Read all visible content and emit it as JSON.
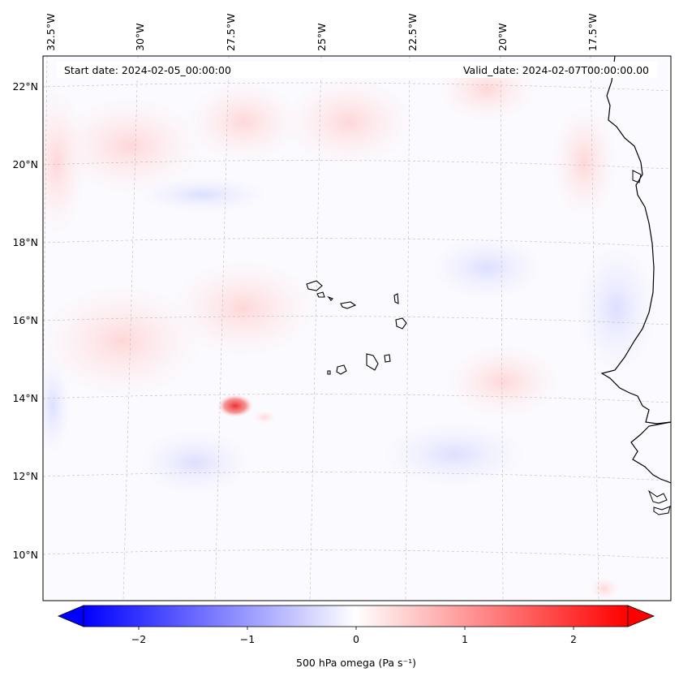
{
  "header": {
    "start_date": "Start date: 2024-02-05_00:00:00",
    "valid_date": "Valid_date: 2024-02-07T00:00:00.00"
  },
  "map": {
    "region": "Eastern Atlantic / Cabo Verde",
    "lon_labels": [
      "32.5°W",
      "30°W",
      "27.5°W",
      "25°W",
      "22.5°W",
      "20°W",
      "17.5°W"
    ],
    "lat_labels": [
      "22°N",
      "20°N",
      "18°N",
      "16°N",
      "14°N",
      "12°N",
      "10°N"
    ],
    "field": "500 hPa omega",
    "colormap": "bwr",
    "features": [
      {
        "name": "west-african-coastline",
        "type": "coastline"
      },
      {
        "name": "cabo-verde-islands",
        "type": "islands"
      },
      {
        "name": "strong-ascent-anomaly",
        "type": "positive-omega-maximum",
        "near": "13.8°N, 27°W"
      }
    ]
  },
  "colorbar": {
    "label": "500 hPa omega (Pa s⁻¹)",
    "ticks": [
      "−2",
      "−1",
      "0",
      "1",
      "2"
    ],
    "tick_values": [
      -2,
      -1,
      0,
      1,
      2
    ],
    "range": [
      -2.5,
      2.5
    ],
    "extend": "both",
    "min_color": "#0000ff",
    "mid_color": "#ffffff",
    "max_color": "#ff0000"
  }
}
